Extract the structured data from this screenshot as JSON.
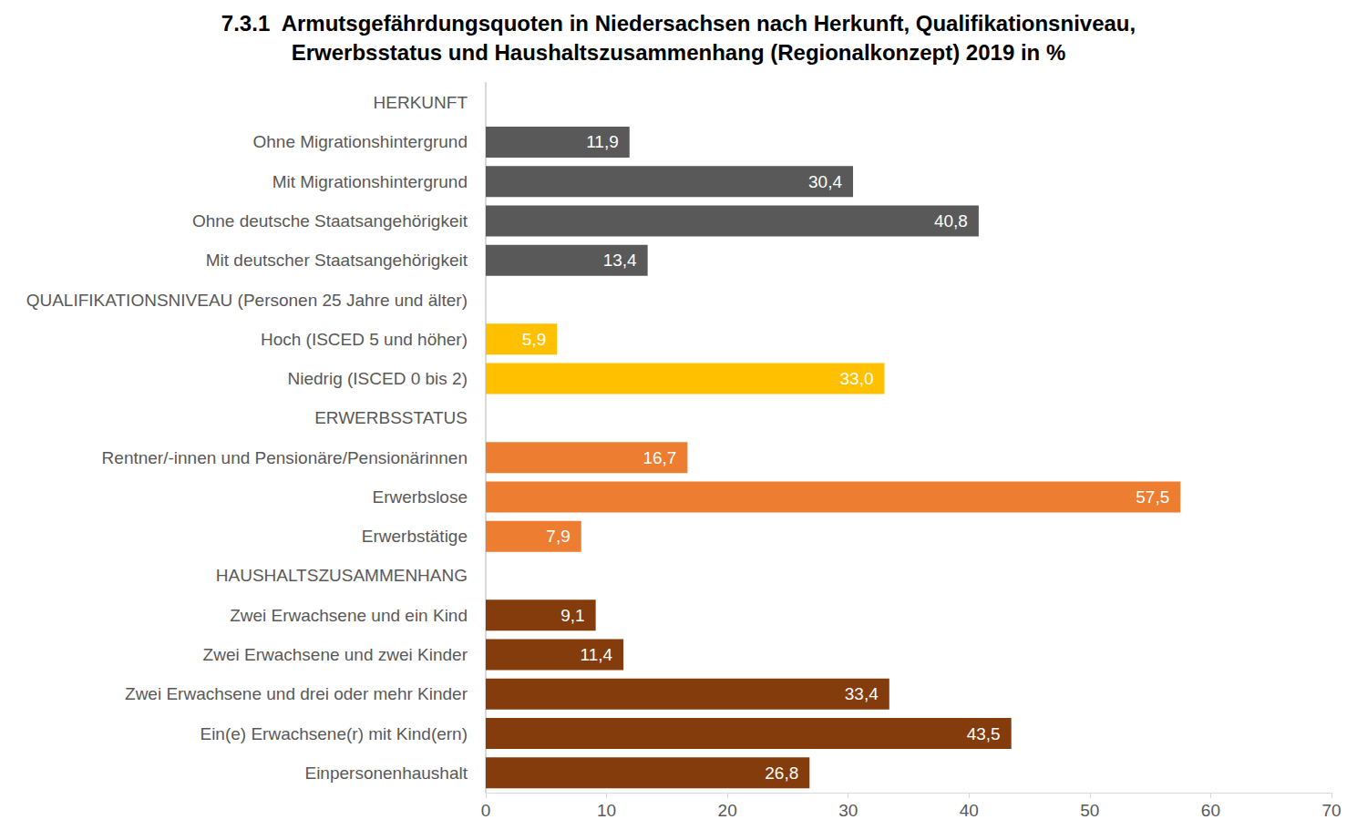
{
  "chart_data": {
    "type": "bar",
    "title": "7.3.1  Armutsgefährdungsquoten in Niedersachsen nach Herkunft, Qualifikationsniveau,\nErwerbsstatus und Haushaltszusammenhang (Regionalkonzept) 2019 in %",
    "orientation": "horizontal",
    "categories": [
      "HERKUNFT",
      "Ohne Migrationshintergrund",
      "Mit Migrationshintergrund",
      "Ohne deutsche Staatsangehörigkeit",
      "Mit deutscher Staatsangehörigkeit",
      "QUALIFIKATIONSNIVEAU (Personen 25 Jahre und älter)",
      "Hoch (ISCED 5 und höher)",
      "Niedrig (ISCED 0 bis 2)",
      "ERWERBSSTATUS",
      "Rentner/-innen und Pensionäre/Pensionärinnen",
      "Erwerbslose",
      "Erwerbstätige",
      "HAUSHALTSZUSAMMENHANG",
      "Zwei Erwachsene und ein Kind",
      "Zwei Erwachsene und zwei Kinder",
      "Zwei Erwachsene und drei oder mehr Kinder",
      "Ein(e) Erwachsene(r) mit Kind(ern)",
      "Einpersonenhaushalt"
    ],
    "values": [
      null,
      11.9,
      30.4,
      40.8,
      13.4,
      null,
      5.9,
      33.0,
      null,
      16.7,
      57.5,
      7.9,
      null,
      9.1,
      11.4,
      33.4,
      43.5,
      26.8
    ],
    "value_labels": [
      null,
      "11,9",
      "30,4",
      "40,8",
      "13,4",
      null,
      "5,9",
      "33,0",
      null,
      "16,7",
      "57,5",
      "7,9",
      null,
      "9,1",
      "11,4",
      "33,4",
      "43,5",
      "26,8"
    ],
    "colors": [
      null,
      "#595959",
      "#595959",
      "#595959",
      "#595959",
      null,
      "#FFC000",
      "#FFC000",
      null,
      "#ED7D31",
      "#ED7D31",
      "#ED7D31",
      null,
      "#843C0C",
      "#843C0C",
      "#843C0C",
      "#843C0C",
      "#843C0C"
    ],
    "xlim": [
      0,
      70
    ],
    "xticks": [
      0,
      10,
      20,
      30,
      40,
      50,
      60,
      70
    ],
    "grid": false,
    "data_labels": true
  }
}
